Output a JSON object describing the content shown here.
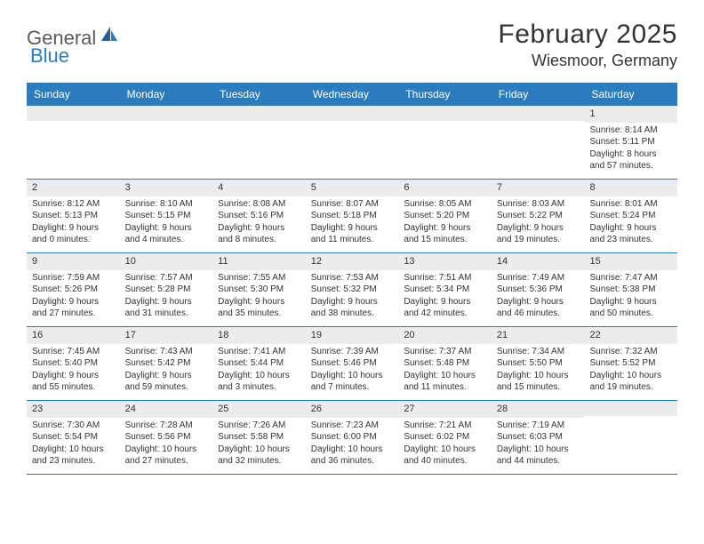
{
  "logo": {
    "text1": "General",
    "text2": "Blue"
  },
  "title": "February 2025",
  "location": "Wiesmoor, Germany",
  "colors": {
    "header_bg": "#2b7bbf",
    "header_text": "#ffffff",
    "cell_border": "#2b7bbf",
    "daynum_bg": "#ececec",
    "text": "#333333",
    "page_bg": "#ffffff"
  },
  "weekdays": [
    "Sunday",
    "Monday",
    "Tuesday",
    "Wednesday",
    "Thursday",
    "Friday",
    "Saturday"
  ],
  "weeks": [
    [
      {
        "n": "",
        "sr": "",
        "ss": "",
        "dl": ""
      },
      {
        "n": "",
        "sr": "",
        "ss": "",
        "dl": ""
      },
      {
        "n": "",
        "sr": "",
        "ss": "",
        "dl": ""
      },
      {
        "n": "",
        "sr": "",
        "ss": "",
        "dl": ""
      },
      {
        "n": "",
        "sr": "",
        "ss": "",
        "dl": ""
      },
      {
        "n": "",
        "sr": "",
        "ss": "",
        "dl": ""
      },
      {
        "n": "1",
        "sr": "Sunrise: 8:14 AM",
        "ss": "Sunset: 5:11 PM",
        "dl": "Daylight: 8 hours and 57 minutes."
      }
    ],
    [
      {
        "n": "2",
        "sr": "Sunrise: 8:12 AM",
        "ss": "Sunset: 5:13 PM",
        "dl": "Daylight: 9 hours and 0 minutes."
      },
      {
        "n": "3",
        "sr": "Sunrise: 8:10 AM",
        "ss": "Sunset: 5:15 PM",
        "dl": "Daylight: 9 hours and 4 minutes."
      },
      {
        "n": "4",
        "sr": "Sunrise: 8:08 AM",
        "ss": "Sunset: 5:16 PM",
        "dl": "Daylight: 9 hours and 8 minutes."
      },
      {
        "n": "5",
        "sr": "Sunrise: 8:07 AM",
        "ss": "Sunset: 5:18 PM",
        "dl": "Daylight: 9 hours and 11 minutes."
      },
      {
        "n": "6",
        "sr": "Sunrise: 8:05 AM",
        "ss": "Sunset: 5:20 PM",
        "dl": "Daylight: 9 hours and 15 minutes."
      },
      {
        "n": "7",
        "sr": "Sunrise: 8:03 AM",
        "ss": "Sunset: 5:22 PM",
        "dl": "Daylight: 9 hours and 19 minutes."
      },
      {
        "n": "8",
        "sr": "Sunrise: 8:01 AM",
        "ss": "Sunset: 5:24 PM",
        "dl": "Daylight: 9 hours and 23 minutes."
      }
    ],
    [
      {
        "n": "9",
        "sr": "Sunrise: 7:59 AM",
        "ss": "Sunset: 5:26 PM",
        "dl": "Daylight: 9 hours and 27 minutes."
      },
      {
        "n": "10",
        "sr": "Sunrise: 7:57 AM",
        "ss": "Sunset: 5:28 PM",
        "dl": "Daylight: 9 hours and 31 minutes."
      },
      {
        "n": "11",
        "sr": "Sunrise: 7:55 AM",
        "ss": "Sunset: 5:30 PM",
        "dl": "Daylight: 9 hours and 35 minutes."
      },
      {
        "n": "12",
        "sr": "Sunrise: 7:53 AM",
        "ss": "Sunset: 5:32 PM",
        "dl": "Daylight: 9 hours and 38 minutes."
      },
      {
        "n": "13",
        "sr": "Sunrise: 7:51 AM",
        "ss": "Sunset: 5:34 PM",
        "dl": "Daylight: 9 hours and 42 minutes."
      },
      {
        "n": "14",
        "sr": "Sunrise: 7:49 AM",
        "ss": "Sunset: 5:36 PM",
        "dl": "Daylight: 9 hours and 46 minutes."
      },
      {
        "n": "15",
        "sr": "Sunrise: 7:47 AM",
        "ss": "Sunset: 5:38 PM",
        "dl": "Daylight: 9 hours and 50 minutes."
      }
    ],
    [
      {
        "n": "16",
        "sr": "Sunrise: 7:45 AM",
        "ss": "Sunset: 5:40 PM",
        "dl": "Daylight: 9 hours and 55 minutes."
      },
      {
        "n": "17",
        "sr": "Sunrise: 7:43 AM",
        "ss": "Sunset: 5:42 PM",
        "dl": "Daylight: 9 hours and 59 minutes."
      },
      {
        "n": "18",
        "sr": "Sunrise: 7:41 AM",
        "ss": "Sunset: 5:44 PM",
        "dl": "Daylight: 10 hours and 3 minutes."
      },
      {
        "n": "19",
        "sr": "Sunrise: 7:39 AM",
        "ss": "Sunset: 5:46 PM",
        "dl": "Daylight: 10 hours and 7 minutes."
      },
      {
        "n": "20",
        "sr": "Sunrise: 7:37 AM",
        "ss": "Sunset: 5:48 PM",
        "dl": "Daylight: 10 hours and 11 minutes."
      },
      {
        "n": "21",
        "sr": "Sunrise: 7:34 AM",
        "ss": "Sunset: 5:50 PM",
        "dl": "Daylight: 10 hours and 15 minutes."
      },
      {
        "n": "22",
        "sr": "Sunrise: 7:32 AM",
        "ss": "Sunset: 5:52 PM",
        "dl": "Daylight: 10 hours and 19 minutes."
      }
    ],
    [
      {
        "n": "23",
        "sr": "Sunrise: 7:30 AM",
        "ss": "Sunset: 5:54 PM",
        "dl": "Daylight: 10 hours and 23 minutes."
      },
      {
        "n": "24",
        "sr": "Sunrise: 7:28 AM",
        "ss": "Sunset: 5:56 PM",
        "dl": "Daylight: 10 hours and 27 minutes."
      },
      {
        "n": "25",
        "sr": "Sunrise: 7:26 AM",
        "ss": "Sunset: 5:58 PM",
        "dl": "Daylight: 10 hours and 32 minutes."
      },
      {
        "n": "26",
        "sr": "Sunrise: 7:23 AM",
        "ss": "Sunset: 6:00 PM",
        "dl": "Daylight: 10 hours and 36 minutes."
      },
      {
        "n": "27",
        "sr": "Sunrise: 7:21 AM",
        "ss": "Sunset: 6:02 PM",
        "dl": "Daylight: 10 hours and 40 minutes."
      },
      {
        "n": "28",
        "sr": "Sunrise: 7:19 AM",
        "ss": "Sunset: 6:03 PM",
        "dl": "Daylight: 10 hours and 44 minutes."
      },
      {
        "n": "",
        "sr": "",
        "ss": "",
        "dl": ""
      }
    ]
  ]
}
